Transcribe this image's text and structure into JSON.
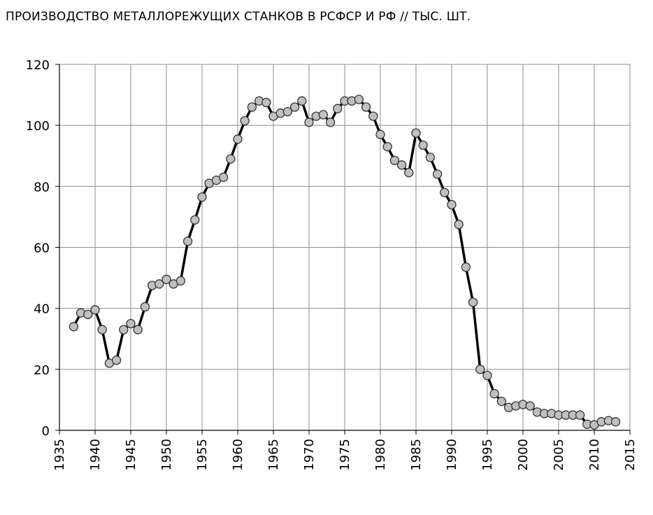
{
  "chart_data": {
    "type": "line",
    "title": "ПРОИЗВОДСТВО МЕТАЛЛОРЕЖУЩИХ СТАНКОВ В РСФСР И РФ // ТЫС. ШТ.",
    "xlabel": "",
    "ylabel": "",
    "xlim": [
      1935,
      2015
    ],
    "ylim": [
      0,
      120
    ],
    "x_ticks": [
      "1935",
      "1940",
      "1945",
      "1950",
      "1955",
      "1960",
      "1965",
      "1970",
      "1975",
      "1980",
      "1985",
      "1990",
      "1995",
      "2000",
      "2005",
      "2010",
      "2015"
    ],
    "y_ticks": [
      "0",
      "20",
      "40",
      "60",
      "80",
      "100",
      "120"
    ],
    "grid": true,
    "legend": "none",
    "marker": "circle",
    "line_color": "#000000",
    "marker_fill": "#c0c0c0",
    "series": [
      {
        "x": [
          1937,
          1938,
          1939,
          1940,
          1941,
          1942,
          1943,
          1944,
          1945,
          1946,
          1947,
          1948,
          1949,
          1950,
          1951,
          1952,
          1953,
          1954,
          1955,
          1956,
          1957,
          1958,
          1959,
          1960,
          1961,
          1962,
          1963,
          1964,
          1965,
          1966,
          1967,
          1968,
          1969,
          1970,
          1971,
          1972,
          1973,
          1974,
          1975,
          1976,
          1977,
          1978,
          1979,
          1980,
          1981,
          1982,
          1983,
          1984,
          1985,
          1986,
          1987,
          1988,
          1989,
          1990,
          1991,
          1992,
          1993,
          1994,
          1995,
          1996,
          1997,
          1998,
          1999,
          2000,
          2001,
          2002,
          2003,
          2004,
          2005,
          2006,
          2007,
          2008,
          2009,
          2010,
          2011,
          2012,
          2013
        ],
        "y": [
          34,
          38.5,
          38,
          39.5,
          33,
          22,
          23,
          33,
          35,
          33,
          40.5,
          47.5,
          48,
          49.5,
          48,
          49,
          62,
          69,
          76.5,
          81,
          82,
          83,
          89,
          95.5,
          101.5,
          106,
          108,
          107.5,
          103,
          104,
          104.5,
          106,
          108,
          101,
          103,
          103.5,
          101,
          105.5,
          108,
          108,
          108.5,
          106,
          103,
          97,
          93,
          88.5,
          87,
          84.5,
          97.5,
          93.5,
          89.5,
          84,
          78,
          74,
          67.5,
          53.5,
          42,
          20,
          18,
          12,
          9.5,
          7.5,
          8,
          8.5,
          8,
          6,
          5.5,
          5.5,
          5,
          5,
          5,
          5,
          2,
          1.8,
          2.8,
          3.2,
          2.8
        ]
      }
    ]
  }
}
